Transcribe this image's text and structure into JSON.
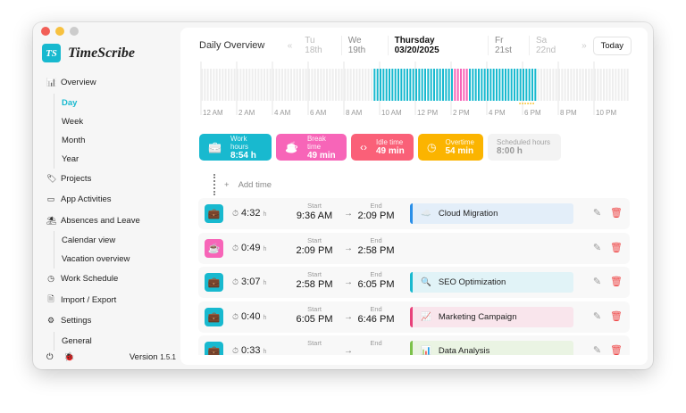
{
  "app": {
    "name": "TimeScribe",
    "logo_text": "TS",
    "version_label": "Version",
    "version": "1.5.1"
  },
  "sidebar": {
    "items": [
      {
        "label": "Overview",
        "icon": "chart-icon",
        "sub": [
          {
            "label": "Day",
            "active": true
          },
          {
            "label": "Week"
          },
          {
            "label": "Month"
          },
          {
            "label": "Year"
          }
        ]
      },
      {
        "label": "Projects",
        "icon": "tag-icon"
      },
      {
        "label": "App Activities",
        "icon": "window-icon"
      },
      {
        "label": "Absences and Leave",
        "icon": "beach-icon",
        "sub": [
          {
            "label": "Calendar view"
          },
          {
            "label": "Vacation overview"
          }
        ]
      },
      {
        "label": "Work Schedule",
        "icon": "schedule-icon"
      },
      {
        "label": "Import / Export",
        "icon": "file-icon"
      },
      {
        "label": "Settings",
        "icon": "gear-icon",
        "sub": [
          {
            "label": "General"
          }
        ]
      }
    ]
  },
  "header": {
    "title": "Daily Overview",
    "days": [
      "Tu 18th",
      "We 19th",
      "Thursday 03/20/2025",
      "Fr 21st",
      "Sa 22nd"
    ],
    "today": "Today"
  },
  "timeline": {
    "labels": [
      "12 AM",
      "2 AM",
      "4 AM",
      "6 AM",
      "8 AM",
      "10 AM",
      "12 PM",
      "2 PM",
      "4 PM",
      "6 PM",
      "8 PM",
      "10 PM"
    ],
    "segments": [
      {
        "type": "work",
        "start": "9:36",
        "end": "14:09"
      },
      {
        "type": "break",
        "start": "14:09",
        "end": "14:58"
      },
      {
        "type": "work",
        "start": "14:58",
        "end": "18:46"
      }
    ],
    "overtime": {
      "start": "17:52",
      "end": "18:46"
    },
    "colors": {
      "work": "#18b9cf",
      "break": "#f765b8",
      "idle": "#eeeeee",
      "overtime": "#f5b400"
    }
  },
  "summary": [
    {
      "label": "Work hours",
      "value": "8:54 h",
      "color": "#18b9cf",
      "icon": "briefcase-icon"
    },
    {
      "label": "Break time",
      "value": "49 min",
      "color": "#f765b8",
      "icon": "coffee-icon"
    },
    {
      "label": "Idle time",
      "value": "49 min",
      "color": "#fa6078",
      "icon": "code-icon"
    },
    {
      "label": "Overtime",
      "value": "54 min",
      "color": "#fbb400",
      "icon": "clock-up-icon"
    },
    {
      "label": "Scheduled hours",
      "value": "8:00 h",
      "color": "#f3f3f3",
      "icon": ""
    }
  ],
  "add_time": "Add time",
  "entries": [
    {
      "type": "work",
      "duration": "4:32",
      "unit": "h",
      "start_label": "Start",
      "start": "9:36 AM",
      "end_label": "End",
      "end": "2:09 PM",
      "project": "Cloud Migration",
      "emoji": "☁️",
      "pcolor": "#2a8fe8",
      "pbg": "#e3eef9"
    },
    {
      "type": "break",
      "duration": "0:49",
      "unit": "h",
      "start_label": "Start",
      "start": "2:09 PM",
      "end_label": "End",
      "end": "2:58 PM"
    },
    {
      "type": "work",
      "duration": "3:07",
      "unit": "h",
      "start_label": "Start",
      "start": "2:58 PM",
      "end_label": "End",
      "end": "6:05 PM",
      "project": "SEO Optimization",
      "emoji": "🔍",
      "pcolor": "#18b9cf",
      "pbg": "#e1f3f7"
    },
    {
      "type": "work",
      "duration": "0:40",
      "unit": "h",
      "start_label": "Start",
      "start": "6:05 PM",
      "end_label": "End",
      "end": "6:46 PM",
      "project": "Marketing Campaign",
      "emoji": "📈",
      "pcolor": "#e8417a",
      "pbg": "#f9e5ec"
    },
    {
      "type": "work",
      "duration": "0:33",
      "unit": "h",
      "start_label": "Start",
      "start": "",
      "end_label": "End",
      "end": "",
      "project": "Data Analysis",
      "emoji": "📊",
      "pcolor": "#7cc24a",
      "pbg": "#eaf4e3"
    }
  ]
}
